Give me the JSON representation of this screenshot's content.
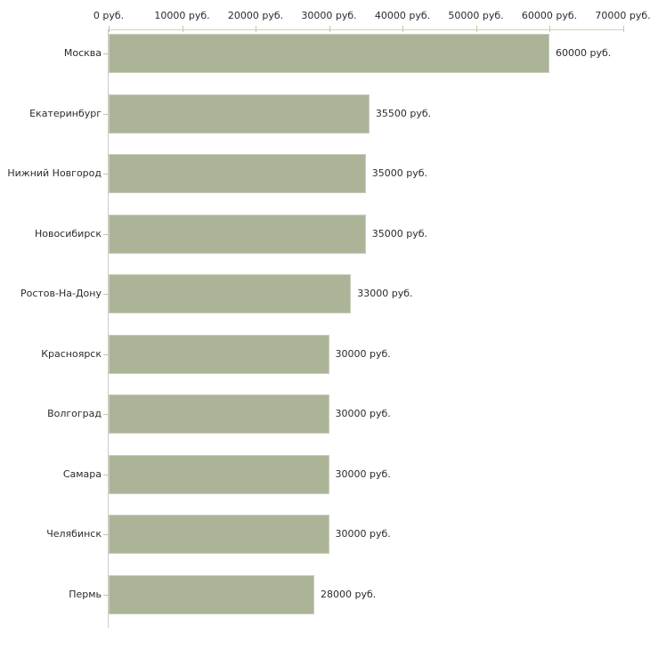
{
  "chart_data": {
    "type": "bar",
    "orientation": "horizontal",
    "title": "",
    "xlabel": "",
    "ylabel": "",
    "xlim": [
      0,
      70000
    ],
    "grid": false,
    "legend": false,
    "axis_position": "top",
    "x_ticks": [
      {
        "value": 0,
        "label": "0 руб."
      },
      {
        "value": 10000,
        "label": "10000 руб."
      },
      {
        "value": 20000,
        "label": "20000 руб."
      },
      {
        "value": 30000,
        "label": "30000 руб."
      },
      {
        "value": 40000,
        "label": "40000 руб."
      },
      {
        "value": 50000,
        "label": "50000 руб."
      },
      {
        "value": 60000,
        "label": "60000 руб."
      },
      {
        "value": 70000,
        "label": "70000 руб."
      }
    ],
    "categories": [
      "Москва",
      "Екатеринбург",
      "Нижний Новгород",
      "Новосибирск",
      "Ростов-На-Дону",
      "Красноярск",
      "Волгоград",
      "Самара",
      "Челябинск",
      "Пермь"
    ],
    "values": [
      60000,
      35500,
      35000,
      35000,
      33000,
      30000,
      30000,
      30000,
      30000,
      28000
    ],
    "value_labels": [
      "60000 руб.",
      "35500 руб.",
      "35000 руб.",
      "35000 руб.",
      "33000 руб.",
      "30000 руб.",
      "30000 руб.",
      "30000 руб.",
      "30000 руб.",
      "28000 руб."
    ]
  },
  "colors": {
    "background": "#ffffff",
    "bar": "#acb498",
    "x_axis_line": "#d6d2b6",
    "x_tick": "#c9c4a0",
    "y_axis_line": "#c9cdc9",
    "y_tick": "#c9c4a0",
    "text": "#2b2b2b"
  }
}
